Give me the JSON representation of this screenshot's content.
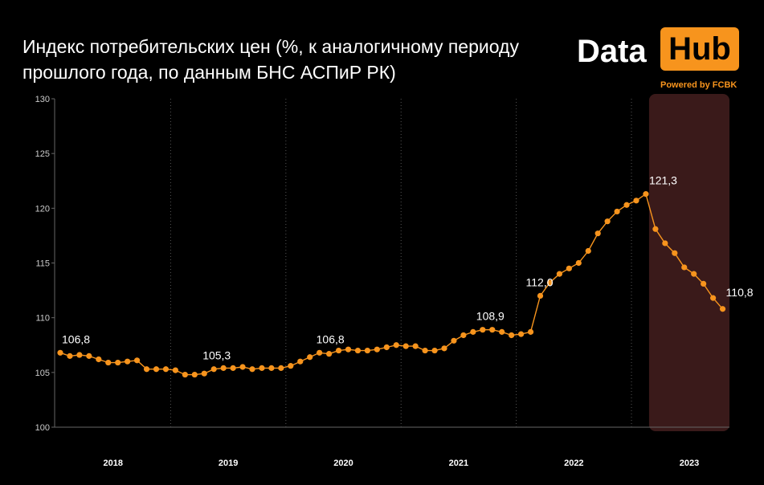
{
  "header": {
    "title_line1": "Индекс потребительских цен (%, к аналогичному периоду",
    "title_line2": "прошлого года, по данным БНС АСПиР РК)"
  },
  "logo": {
    "data_text": "Data",
    "hub_text": "Hub",
    "powered_text": "Powered by FCBK"
  },
  "colors": {
    "line": "#f7941d",
    "marker": "#f7941d",
    "highlight": "#3a1a1a",
    "grid": "#555555",
    "axis_text": "#cccccc"
  },
  "chart_data": {
    "type": "line",
    "title": "Индекс потребительских цен (%, к аналогичному периоду прошлого года, по данным БНС АСПиР РК)",
    "ylim": [
      100,
      130
    ],
    "yticks": [
      "100",
      "105",
      "110",
      "115",
      "120",
      "125",
      "130"
    ],
    "years": [
      "2018",
      "2019",
      "2020",
      "2021",
      "2022",
      "2023"
    ],
    "grid": "vertical dotted separators between years",
    "highlight": "2023 period shaded",
    "series": [
      {
        "values": [
          106.8,
          106.5,
          106.6,
          106.5,
          106.2,
          105.9,
          105.9,
          106.0,
          106.1,
          105.3,
          105.3,
          105.3,
          105.2,
          104.8,
          104.8,
          104.9,
          105.3,
          105.4,
          105.4,
          105.5,
          105.3,
          105.4,
          105.4,
          105.4,
          105.6,
          106.0,
          106.4,
          106.8,
          106.7,
          107.0,
          107.1,
          107.0,
          107.0,
          107.1,
          107.3,
          107.5,
          107.4,
          107.4,
          107.0,
          107.0,
          107.2,
          107.9,
          108.4,
          108.7,
          108.9,
          108.9,
          108.7,
          108.4,
          108.5,
          108.7,
          112.0,
          113.2,
          114.0,
          114.5,
          115.0,
          116.1,
          117.7,
          118.8,
          119.7,
          120.3,
          120.7,
          121.3,
          118.1,
          116.8,
          115.9,
          114.6,
          114.0,
          113.1,
          111.8,
          110.8
        ]
      }
    ],
    "data_labels": [
      {
        "index": 0,
        "text": "106,8"
      },
      {
        "index": 16,
        "text": "105,3"
      },
      {
        "index": 27,
        "text": "106,8"
      },
      {
        "index": 44,
        "text": "108,9"
      },
      {
        "index": 50,
        "text": "112,0"
      },
      {
        "index": 61,
        "text": "121,3"
      },
      {
        "index": 69,
        "text": "110,8"
      }
    ]
  }
}
